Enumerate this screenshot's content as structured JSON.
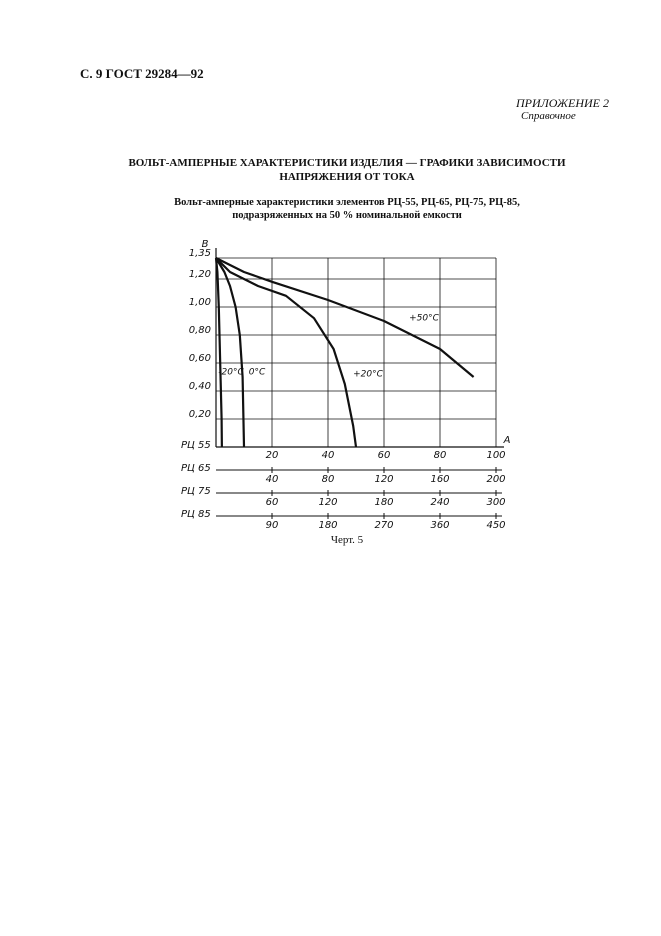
{
  "header": "С. 9 ГОСТ 29284—92",
  "appendix": {
    "label": "ПРИЛОЖЕНИЕ 2",
    "note": "Справочное"
  },
  "title": [
    "ВОЛЬТ-АМПЕРНЫЕ ХАРАКТЕРИСТИКИ ИЗДЕЛИЯ — ГРАФИКИ ЗАВИСИМОСТИ",
    "НАПРЯЖЕНИЯ ОТ ТОКА"
  ],
  "subtitle": [
    "Вольт-амперные характеристики элементов РЦ-55, РЦ-65, РЦ-75, РЦ-85,",
    "подразряженных на 50 % номинальной емкости"
  ],
  "chart_data": {
    "type": "line",
    "ylabel": "В",
    "xlabel": "А",
    "xscale_name": "РЦ 55",
    "xlim": [
      0,
      100
    ],
    "xticks": [
      20,
      40,
      60,
      80,
      100
    ],
    "ylim": [
      0,
      1.35
    ],
    "yticks": [
      {
        "value": 0.2,
        "label": "0,20"
      },
      {
        "value": 0.4,
        "label": "0,40"
      },
      {
        "value": 0.6,
        "label": "0,60"
      },
      {
        "value": 0.8,
        "label": "0,80"
      },
      {
        "value": 1.0,
        "label": "1,00"
      },
      {
        "value": 1.2,
        "label": "1,20"
      },
      {
        "value": 1.35,
        "label": "1,35"
      }
    ],
    "grid": true,
    "color": "#111111",
    "series": [
      {
        "name": "-20°C",
        "x": [
          0,
          0.5,
          1,
          1.5,
          2,
          2.1
        ],
        "values": [
          1.35,
          1.25,
          1.0,
          0.6,
          0.2,
          0
        ]
      },
      {
        "name": "0°C",
        "x": [
          0,
          3,
          5,
          7,
          8.5,
          9.5,
          10
        ],
        "values": [
          1.35,
          1.25,
          1.15,
          1.0,
          0.8,
          0.5,
          0
        ]
      },
      {
        "name": "+20°C",
        "x": [
          0,
          5,
          15,
          25,
          35,
          42,
          46,
          49,
          50
        ],
        "values": [
          1.35,
          1.25,
          1.15,
          1.08,
          0.92,
          0.7,
          0.45,
          0.15,
          0
        ]
      },
      {
        "name": "+50°C",
        "x": [
          0,
          10,
          20,
          40,
          60,
          80,
          92
        ],
        "values": [
          1.35,
          1.25,
          1.18,
          1.05,
          0.9,
          0.7,
          0.5
        ]
      }
    ],
    "extra_xaxes": [
      {
        "name": "РЦ 65",
        "xlim": [
          0,
          200
        ],
        "xticks": [
          40,
          80,
          120,
          160,
          200
        ]
      },
      {
        "name": "РЦ 75",
        "xlim": [
          0,
          300
        ],
        "xticks": [
          60,
          120,
          180,
          240,
          300
        ]
      },
      {
        "name": "РЦ 85",
        "xlim": [
          0,
          450
        ],
        "xticks": [
          90,
          180,
          270,
          360,
          450
        ]
      }
    ]
  },
  "caption": "Черт. 5"
}
